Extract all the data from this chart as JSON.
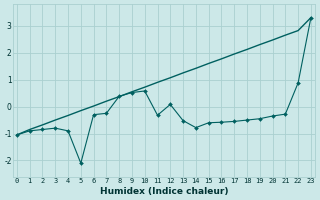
{
  "xlabel": "Humidex (Indice chaleur)",
  "background_color": "#cce8e8",
  "grid_color": "#aad0d0",
  "line_color": "#006060",
  "x_smooth": [
    0,
    1,
    2,
    3,
    4,
    5,
    6,
    7,
    8,
    9,
    10,
    11,
    12,
    13,
    14,
    15,
    16,
    17,
    18,
    19,
    20,
    21,
    22,
    23
  ],
  "y_smooth": [
    -1.05,
    -0.85,
    -0.68,
    -0.5,
    -0.33,
    -0.15,
    0.02,
    0.2,
    0.37,
    0.55,
    0.72,
    0.9,
    1.07,
    1.25,
    1.42,
    1.6,
    1.77,
    1.95,
    2.12,
    2.3,
    2.47,
    2.65,
    2.82,
    3.3
  ],
  "x_jagged": [
    0,
    1,
    2,
    3,
    4,
    5,
    6,
    7,
    8,
    9,
    10,
    11,
    12,
    13,
    14,
    15,
    16,
    17,
    18,
    19,
    20,
    21,
    22,
    23
  ],
  "y_jagged": [
    -1.05,
    -0.9,
    -0.85,
    -0.8,
    -0.9,
    -2.1,
    -0.3,
    -0.25,
    0.38,
    0.52,
    0.58,
    -0.32,
    0.08,
    -0.52,
    -0.78,
    -0.6,
    -0.58,
    -0.55,
    -0.5,
    -0.45,
    -0.35,
    -0.28,
    0.88,
    3.3
  ],
  "xlim": [
    -0.3,
    23.3
  ],
  "ylim": [
    -2.6,
    3.8
  ],
  "yticks": [
    -2,
    -1,
    0,
    1,
    2,
    3
  ],
  "xticks": [
    0,
    1,
    2,
    3,
    4,
    5,
    6,
    7,
    8,
    9,
    10,
    11,
    12,
    13,
    14,
    15,
    16,
    17,
    18,
    19,
    20,
    21,
    22,
    23
  ],
  "tick_fontsize": 5.0,
  "xlabel_fontsize": 6.5
}
